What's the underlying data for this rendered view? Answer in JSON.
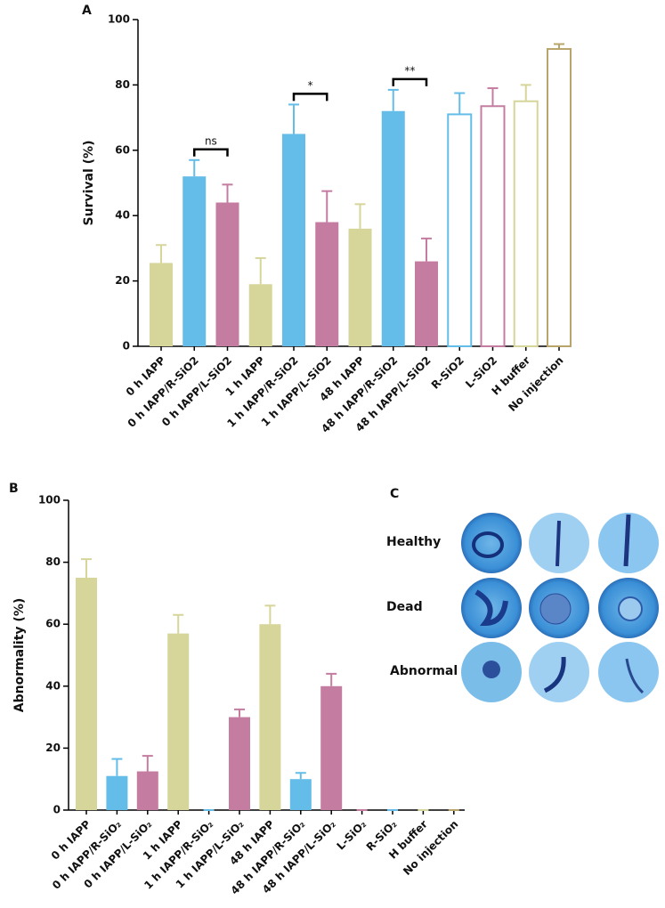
{
  "chart_data": [
    {
      "type": "bar",
      "panel_label": "A",
      "ylabel": "Survival (%)",
      "categories": [
        "0 h IAPP",
        "0 h IAPP/R-SiO2",
        "0 h IAPP/L-SiO2",
        "1 h IAPP",
        "1 h IAPP/R-SiO2",
        "1 h IAPP/L-SiO2",
        "48 h IAPP",
        "48 h IAPP/R-SiO2",
        "48 h IAPP/L-SiO2",
        "R-SiO2",
        "L-SiO2",
        "H buffer",
        "No injection"
      ],
      "values": [
        25.5,
        52,
        44,
        19,
        65,
        38,
        36,
        72,
        26,
        71,
        73.5,
        75,
        91
      ],
      "errors": [
        5.5,
        5,
        5.5,
        8,
        9,
        9.5,
        7.5,
        6.5,
        7,
        6.5,
        5.5,
        5,
        1.5
      ],
      "colors": [
        "#d6d59a",
        "#63bde8",
        "#c47da0",
        "#d6d59a",
        "#63bde8",
        "#c47da0",
        "#d6d59a",
        "#63bde8",
        "#c47da0",
        "#63bde8",
        "#c47da0",
        "#d6d59a",
        "#b9a56b"
      ],
      "hollow": [
        false,
        false,
        false,
        false,
        false,
        false,
        false,
        false,
        false,
        true,
        true,
        true,
        true
      ],
      "annotations": [
        {
          "label": "ns",
          "from": 1,
          "to": 2
        },
        {
          "label": "*",
          "from": 4,
          "to": 5
        },
        {
          "label": "**",
          "from": 7,
          "to": 8
        }
      ],
      "ylim": [
        0,
        100
      ],
      "yticks": [
        0,
        20,
        40,
        60,
        80,
        100
      ]
    },
    {
      "type": "bar",
      "panel_label": "B",
      "ylabel": "Abnormality (%)",
      "categories": [
        "0 h IAPP",
        "0 h IAPP/R-SiO₂",
        "0 h IAPP/L-SiO₂",
        "1 h IAPP",
        "1 h IAPP/R-SiO₂",
        "1 h IAPP/L-SiO₂",
        "48 h IAPP",
        "48 h IAPP/R-SiO₂",
        "48 h IAPP/L-SiO₂",
        "L-SiO₂",
        "R-SiO₂",
        "H buffer",
        "No injection"
      ],
      "values": [
        75,
        11,
        12.5,
        57,
        0,
        30,
        60,
        10,
        40,
        0,
        0,
        0,
        0
      ],
      "errors": [
        6,
        5.5,
        5,
        6,
        0,
        2.5,
        6,
        2,
        4,
        0,
        0,
        0,
        0
      ],
      "colors": [
        "#d6d59a",
        "#63bde8",
        "#c47da0",
        "#d6d59a",
        "#63bde8",
        "#c47da0",
        "#d6d59a",
        "#63bde8",
        "#c47da0",
        "#c47da0",
        "#63bde8",
        "#d6d59a",
        "#b9a56b"
      ],
      "ylim": [
        0,
        100
      ],
      "yticks": [
        0,
        20,
        40,
        60,
        80,
        100
      ]
    }
  ],
  "panel_c": {
    "label": "C",
    "rows": [
      "Healthy",
      "Dead",
      "Abnormal"
    ]
  }
}
